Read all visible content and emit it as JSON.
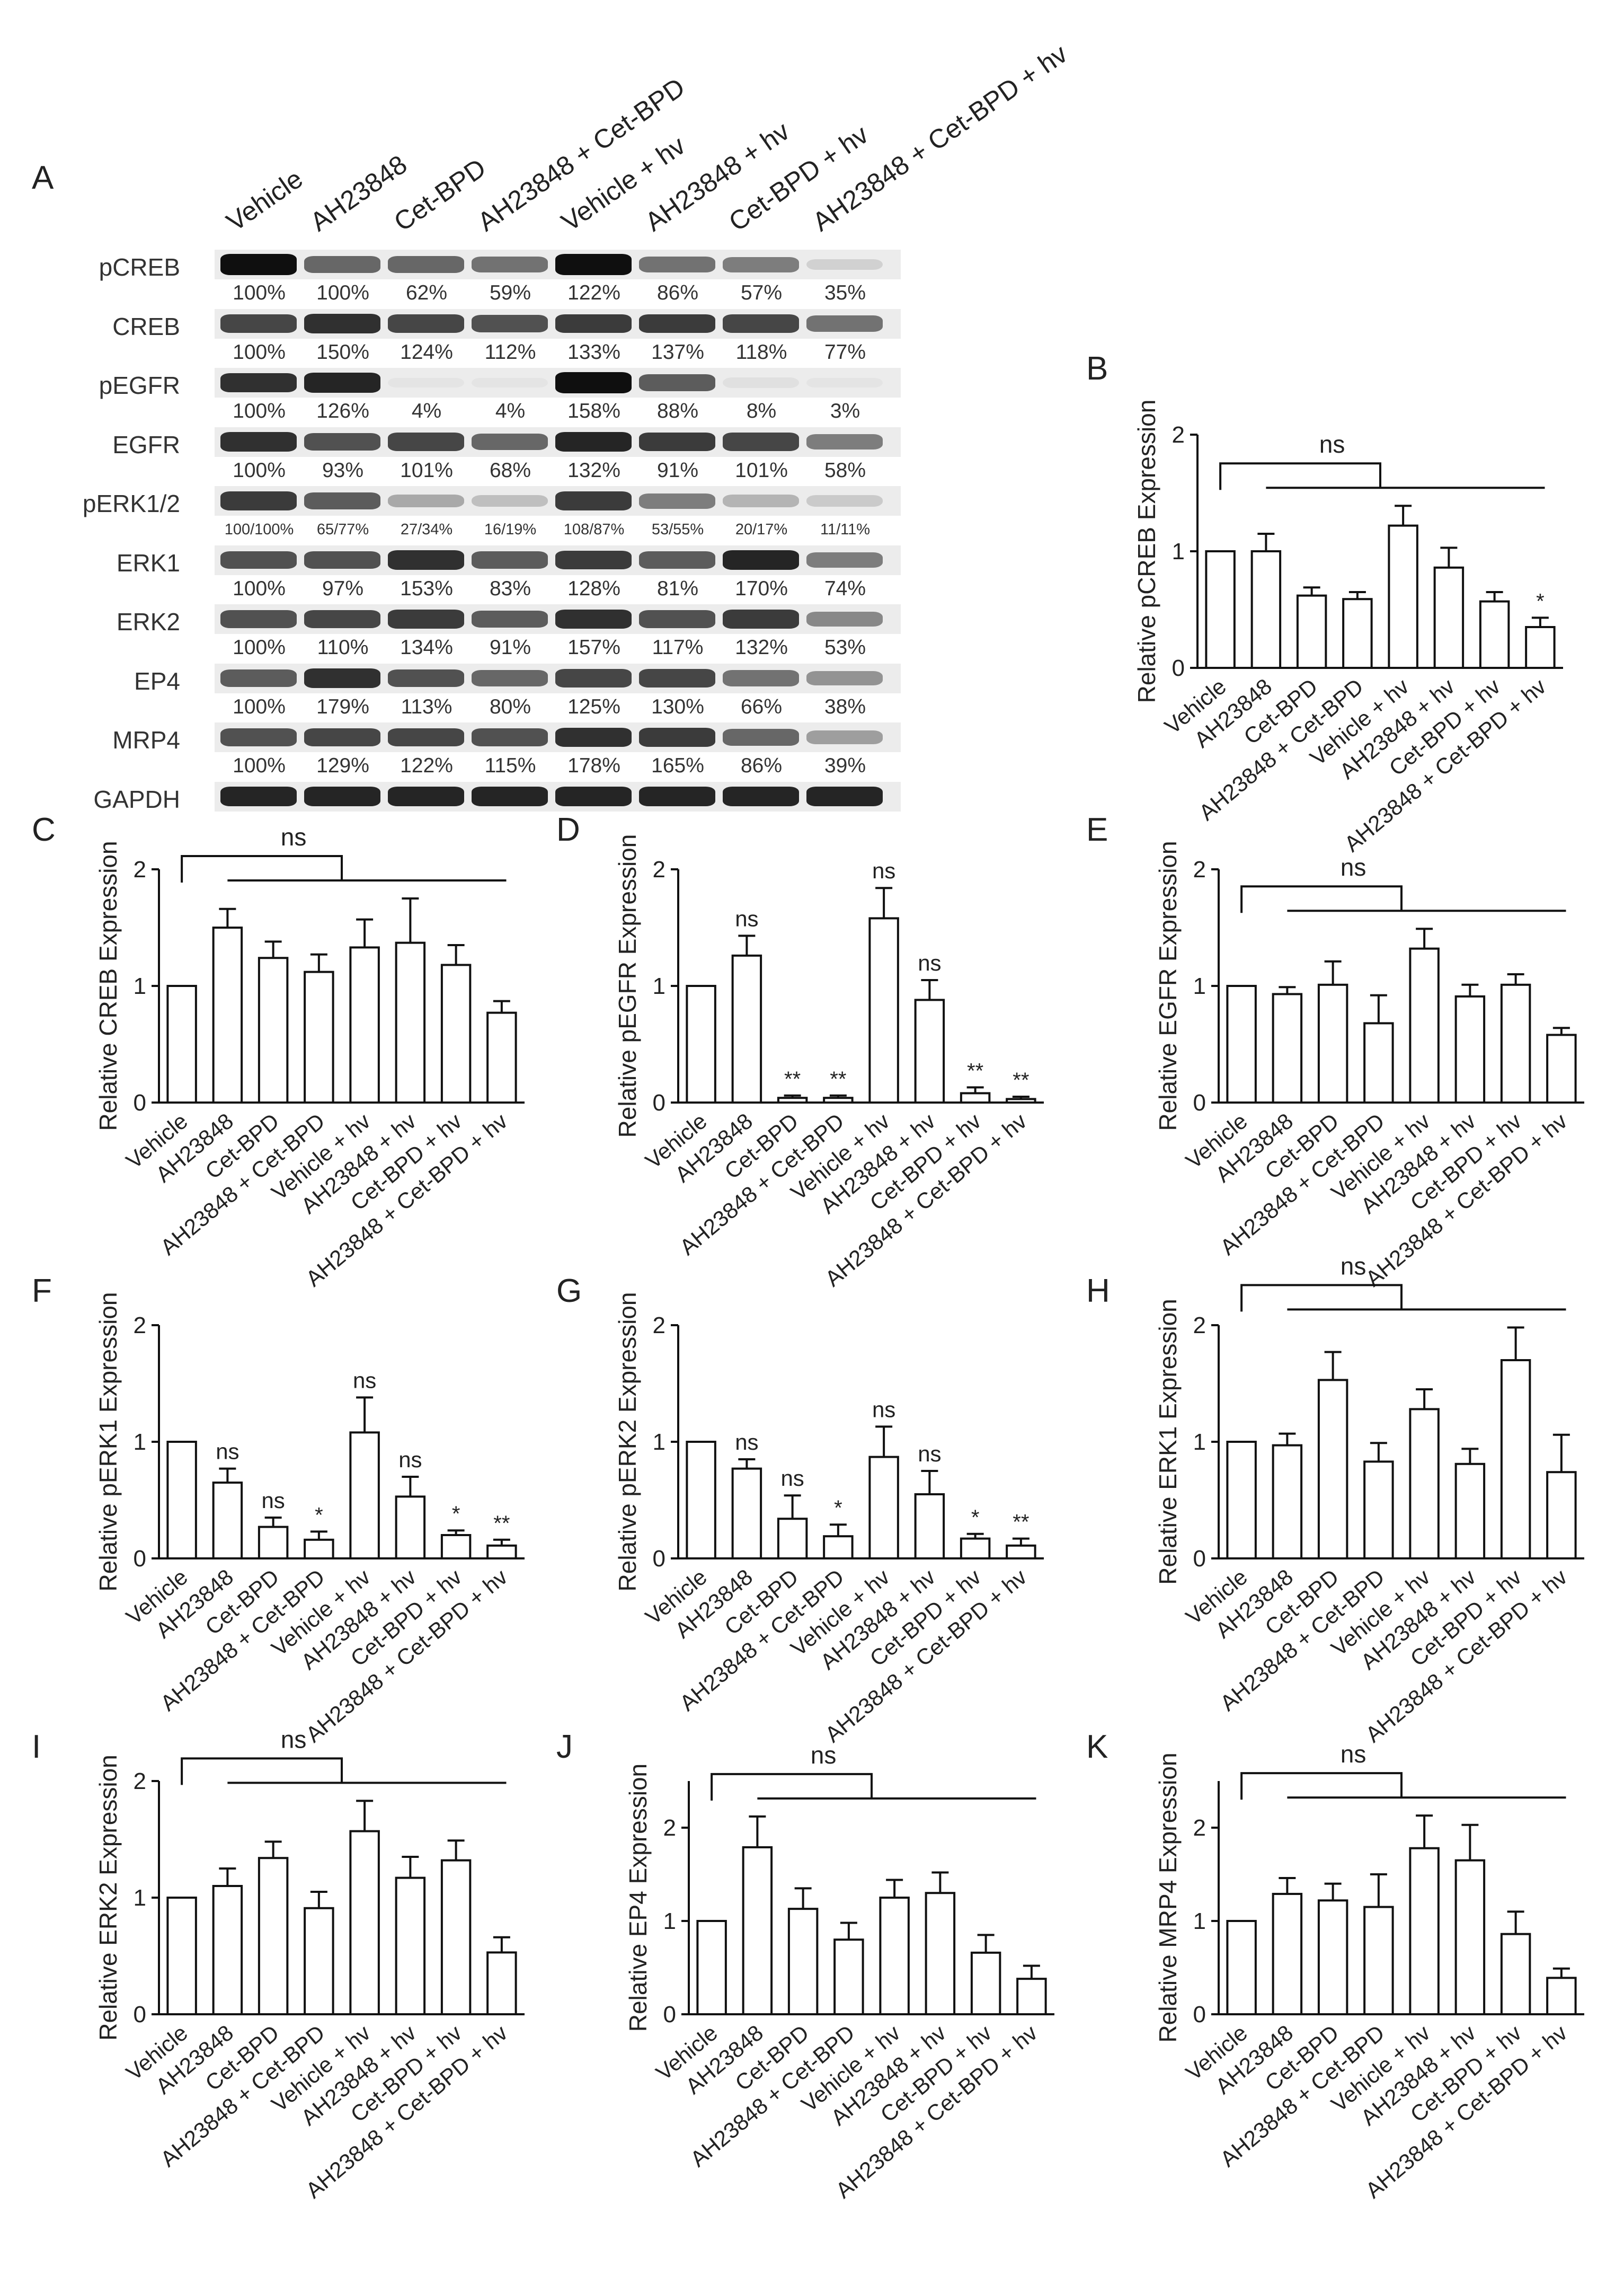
{
  "panel_a": {
    "letter": "A",
    "lanes": [
      "Vehicle",
      "AH23848",
      "Cet-BPD",
      "AH23848 + Cet-BPD",
      "Vehicle + hv",
      "AH23848 + hv",
      "Cet-BPD + hv",
      "AH23848 + Cet-BPD + hv"
    ],
    "rows": [
      {
        "label": "pCREB",
        "values": [
          "100%",
          "100%",
          "62%",
          "59%",
          "122%",
          "86%",
          "57%",
          "35%"
        ],
        "intensity": [
          1.0,
          0.6,
          0.6,
          0.55,
          1.0,
          0.55,
          0.5,
          0.12
        ],
        "small": false
      },
      {
        "label": "CREB",
        "values": [
          "100%",
          "150%",
          "124%",
          "112%",
          "133%",
          "137%",
          "118%",
          "77%"
        ],
        "intensity": [
          0.75,
          0.85,
          0.75,
          0.7,
          0.8,
          0.8,
          0.75,
          0.55
        ],
        "small": false
      },
      {
        "label": "pEGFR",
        "values": [
          "100%",
          "126%",
          "4%",
          "4%",
          "158%",
          "88%",
          "8%",
          "3%"
        ],
        "intensity": [
          0.85,
          0.9,
          0.03,
          0.03,
          1.0,
          0.65,
          0.05,
          0.03
        ],
        "small": false
      },
      {
        "label": "EGFR",
        "values": [
          "100%",
          "93%",
          "101%",
          "68%",
          "132%",
          "91%",
          "101%",
          "58%"
        ],
        "intensity": [
          0.85,
          0.7,
          0.75,
          0.6,
          0.9,
          0.8,
          0.75,
          0.5
        ],
        "small": false
      },
      {
        "label": "pERK1/2",
        "values": [
          "100/100%",
          "65/77%",
          "27/34%",
          "16/19%",
          "108/87%",
          "53/55%",
          "20/17%",
          "11/11%"
        ],
        "intensity": [
          0.8,
          0.65,
          0.3,
          0.2,
          0.8,
          0.5,
          0.25,
          0.15
        ],
        "small": true
      },
      {
        "label": "ERK1",
        "values": [
          "100%",
          "97%",
          "153%",
          "83%",
          "128%",
          "81%",
          "170%",
          "74%"
        ],
        "intensity": [
          0.7,
          0.7,
          0.85,
          0.65,
          0.8,
          0.65,
          0.9,
          0.5
        ],
        "small": false
      },
      {
        "label": "ERK2",
        "values": [
          "100%",
          "110%",
          "134%",
          "91%",
          "157%",
          "117%",
          "132%",
          "53%"
        ],
        "intensity": [
          0.7,
          0.75,
          0.8,
          0.65,
          0.85,
          0.7,
          0.8,
          0.45
        ],
        "small": false
      },
      {
        "label": "EP4",
        "values": [
          "100%",
          "179%",
          "113%",
          "80%",
          "125%",
          "130%",
          "66%",
          "38%"
        ],
        "intensity": [
          0.65,
          0.85,
          0.7,
          0.6,
          0.75,
          0.75,
          0.55,
          0.4
        ],
        "small": false
      },
      {
        "label": "MRP4",
        "values": [
          "100%",
          "129%",
          "122%",
          "115%",
          "178%",
          "165%",
          "86%",
          "39%"
        ],
        "intensity": [
          0.7,
          0.75,
          0.75,
          0.7,
          0.85,
          0.8,
          0.6,
          0.35
        ],
        "small": false
      },
      {
        "label": "GAPDH",
        "values": [
          "",
          "",
          "",
          "",
          "",
          "",
          "",
          ""
        ],
        "intensity": [
          0.9,
          0.9,
          0.9,
          0.9,
          0.9,
          0.9,
          0.9,
          0.9
        ],
        "small": false
      }
    ]
  },
  "chart_data": [
    {
      "panel": "B",
      "type": "bar",
      "ylabel": "Relative pCREB Expression",
      "ylim": [
        0,
        2
      ],
      "yticks": [
        "0",
        "1",
        "2"
      ],
      "categories": [
        "Vehicle",
        "AH23848",
        "Cet-BPD",
        "AH23848 + Cet-BPD",
        "Vehicle + hv",
        "AH23848 + hv",
        "Cet-BPD + hv",
        "AH23848 + Cet-BPD + hv"
      ],
      "values": [
        1.0,
        1.0,
        0.62,
        0.59,
        1.22,
        0.86,
        0.57,
        0.35
      ],
      "errors": [
        0,
        0.15,
        0.07,
        0.06,
        0.17,
        0.17,
        0.08,
        0.08
      ],
      "annotations": [
        "",
        "",
        "",
        "",
        "",
        "",
        "",
        "*"
      ],
      "bracket_label": "ns"
    },
    {
      "panel": "C",
      "type": "bar",
      "ylabel": "Relative CREB Expression",
      "ylim": [
        0,
        2
      ],
      "yticks": [
        "0",
        "1",
        "2"
      ],
      "categories": [
        "Vehicle",
        "AH23848",
        "Cet-BPD",
        "AH23848 + Cet-BPD",
        "Vehicle + hv",
        "AH23848 + hv",
        "Cet-BPD + hv",
        "AH23848 + Cet-BPD + hv"
      ],
      "values": [
        1.0,
        1.5,
        1.24,
        1.12,
        1.33,
        1.37,
        1.18,
        0.77
      ],
      "errors": [
        0,
        0.16,
        0.14,
        0.15,
        0.24,
        0.38,
        0.17,
        0.1
      ],
      "annotations": [
        "",
        "",
        "",
        "",
        "",
        "",
        "",
        ""
      ],
      "bracket_label": "ns"
    },
    {
      "panel": "D",
      "type": "bar",
      "ylabel": "Relative pEGFR Expression",
      "ylim": [
        0,
        2
      ],
      "yticks": [
        "0",
        "1",
        "2"
      ],
      "categories": [
        "Vehicle",
        "AH23848",
        "Cet-BPD",
        "AH23848 + Cet-BPD",
        "Vehicle + hv",
        "AH23848 + hv",
        "Cet-BPD + hv",
        "AH23848 + Cet-BPD + hv"
      ],
      "values": [
        1.0,
        1.26,
        0.04,
        0.04,
        1.58,
        0.88,
        0.08,
        0.03
      ],
      "errors": [
        0,
        0.17,
        0.02,
        0.02,
        0.26,
        0.17,
        0.05,
        0.02
      ],
      "annotations": [
        "",
        "ns",
        "**",
        "**",
        "ns",
        "ns",
        "**",
        "**"
      ],
      "bracket_label": ""
    },
    {
      "panel": "E",
      "type": "bar",
      "ylabel": "Relative EGFR Expression",
      "ylim": [
        0,
        2
      ],
      "yticks": [
        "0",
        "1",
        "2"
      ],
      "categories": [
        "Vehicle",
        "AH23848",
        "Cet-BPD",
        "AH23848 + Cet-BPD",
        "Vehicle + hv",
        "AH23848 + hv",
        "Cet-BPD + hv",
        "AH23848 + Cet-BPD + hv"
      ],
      "values": [
        1.0,
        0.93,
        1.01,
        0.68,
        1.32,
        0.91,
        1.01,
        0.58
      ],
      "errors": [
        0,
        0.06,
        0.2,
        0.24,
        0.17,
        0.1,
        0.09,
        0.06
      ],
      "annotations": [
        "",
        "",
        "",
        "",
        "",
        "",
        "",
        ""
      ],
      "bracket_label": "ns"
    },
    {
      "panel": "F",
      "type": "bar",
      "ylabel": "Relative pERK1 Expression",
      "ylim": [
        0,
        2
      ],
      "yticks": [
        "0",
        "1",
        "2"
      ],
      "categories": [
        "Vehicle",
        "AH23848",
        "Cet-BPD",
        "AH23848 + Cet-BPD",
        "Vehicle + hv",
        "AH23848 + hv",
        "Cet-BPD + hv",
        "AH23848 + Cet-BPD + hv"
      ],
      "values": [
        1.0,
        0.65,
        0.27,
        0.16,
        1.08,
        0.53,
        0.2,
        0.11
      ],
      "errors": [
        0,
        0.12,
        0.08,
        0.07,
        0.3,
        0.17,
        0.04,
        0.05
      ],
      "annotations": [
        "",
        "ns",
        "ns",
        "*",
        "ns",
        "ns",
        "*",
        "**"
      ],
      "bracket_label": ""
    },
    {
      "panel": "G",
      "type": "bar",
      "ylabel": "Relative pERK2 Expression",
      "ylim": [
        0,
        2
      ],
      "yticks": [
        "0",
        "1",
        "2"
      ],
      "categories": [
        "Vehicle",
        "AH23848",
        "Cet-BPD",
        "AH23848 + Cet-BPD",
        "Vehicle + hv",
        "AH23848 + hv",
        "Cet-BPD + hv",
        "AH23848 + Cet-BPD + hv"
      ],
      "values": [
        1.0,
        0.77,
        0.34,
        0.19,
        0.87,
        0.55,
        0.17,
        0.11
      ],
      "errors": [
        0,
        0.08,
        0.2,
        0.1,
        0.26,
        0.2,
        0.04,
        0.06
      ],
      "annotations": [
        "",
        "ns",
        "ns",
        "*",
        "ns",
        "ns",
        "*",
        "**"
      ],
      "bracket_label": ""
    },
    {
      "panel": "H",
      "type": "bar",
      "ylabel": "Relative ERK1 Expression",
      "ylim": [
        0,
        2
      ],
      "yticks": [
        "0",
        "1",
        "2"
      ],
      "categories": [
        "Vehicle",
        "AH23848",
        "Cet-BPD",
        "AH23848 + Cet-BPD",
        "Vehicle + hv",
        "AH23848 + hv",
        "Cet-BPD + hv",
        "AH23848 + Cet-BPD + hv"
      ],
      "values": [
        1.0,
        0.97,
        1.53,
        0.83,
        1.28,
        0.81,
        1.7,
        0.74
      ],
      "errors": [
        0,
        0.1,
        0.24,
        0.16,
        0.17,
        0.13,
        0.28,
        0.32
      ],
      "annotations": [
        "",
        "",
        "",
        "",
        "",
        "",
        "",
        ""
      ],
      "bracket_label": "ns"
    },
    {
      "panel": "I",
      "type": "bar",
      "ylabel": "Relative ERK2 Expression",
      "ylim": [
        0,
        2
      ],
      "yticks": [
        "0",
        "1",
        "2"
      ],
      "categories": [
        "Vehicle",
        "AH23848",
        "Cet-BPD",
        "AH23848 + Cet-BPD",
        "Vehicle + hv",
        "AH23848 + hv",
        "Cet-BPD + hv",
        "AH23848 + Cet-BPD + hv"
      ],
      "values": [
        1.0,
        1.1,
        1.34,
        0.91,
        1.57,
        1.17,
        1.32,
        0.53
      ],
      "errors": [
        0,
        0.15,
        0.14,
        0.14,
        0.26,
        0.18,
        0.17,
        0.13
      ],
      "annotations": [
        "",
        "",
        "",
        "",
        "",
        "",
        "",
        ""
      ],
      "bracket_label": "ns"
    },
    {
      "panel": "J",
      "type": "bar",
      "ylabel": "Relative EP4 Expression",
      "ylim": [
        0,
        2.5
      ],
      "yticks": [
        "0",
        "1",
        "2"
      ],
      "categories": [
        "Vehicle",
        "AH23848",
        "Cet-BPD",
        "AH23848 + Cet-BPD",
        "Vehicle + hv",
        "AH23848 + hv",
        "Cet-BPD + hv",
        "AH23848 + Cet-BPD + hv"
      ],
      "values": [
        1.0,
        1.79,
        1.13,
        0.8,
        1.25,
        1.3,
        0.66,
        0.38
      ],
      "errors": [
        0,
        0.33,
        0.22,
        0.18,
        0.19,
        0.22,
        0.19,
        0.14
      ],
      "annotations": [
        "",
        "",
        "",
        "",
        "",
        "",
        "",
        ""
      ],
      "bracket_label": "ns"
    },
    {
      "panel": "K",
      "type": "bar",
      "ylabel": "Relative MRP4 Expression",
      "ylim": [
        0,
        2.5
      ],
      "yticks": [
        "0",
        "1",
        "2"
      ],
      "categories": [
        "Vehicle",
        "AH23848",
        "Cet-BPD",
        "AH23848 + Cet-BPD",
        "Vehicle + hv",
        "AH23848 + hv",
        "Cet-BPD + hv",
        "AH23848 + Cet-BPD + hv"
      ],
      "values": [
        1.0,
        1.29,
        1.22,
        1.15,
        1.78,
        1.65,
        0.86,
        0.39
      ],
      "errors": [
        0,
        0.17,
        0.18,
        0.35,
        0.35,
        0.38,
        0.24,
        0.1
      ],
      "annotations": [
        "",
        "",
        "",
        "",
        "",
        "",
        "",
        ""
      ],
      "bracket_label": "ns"
    }
  ]
}
